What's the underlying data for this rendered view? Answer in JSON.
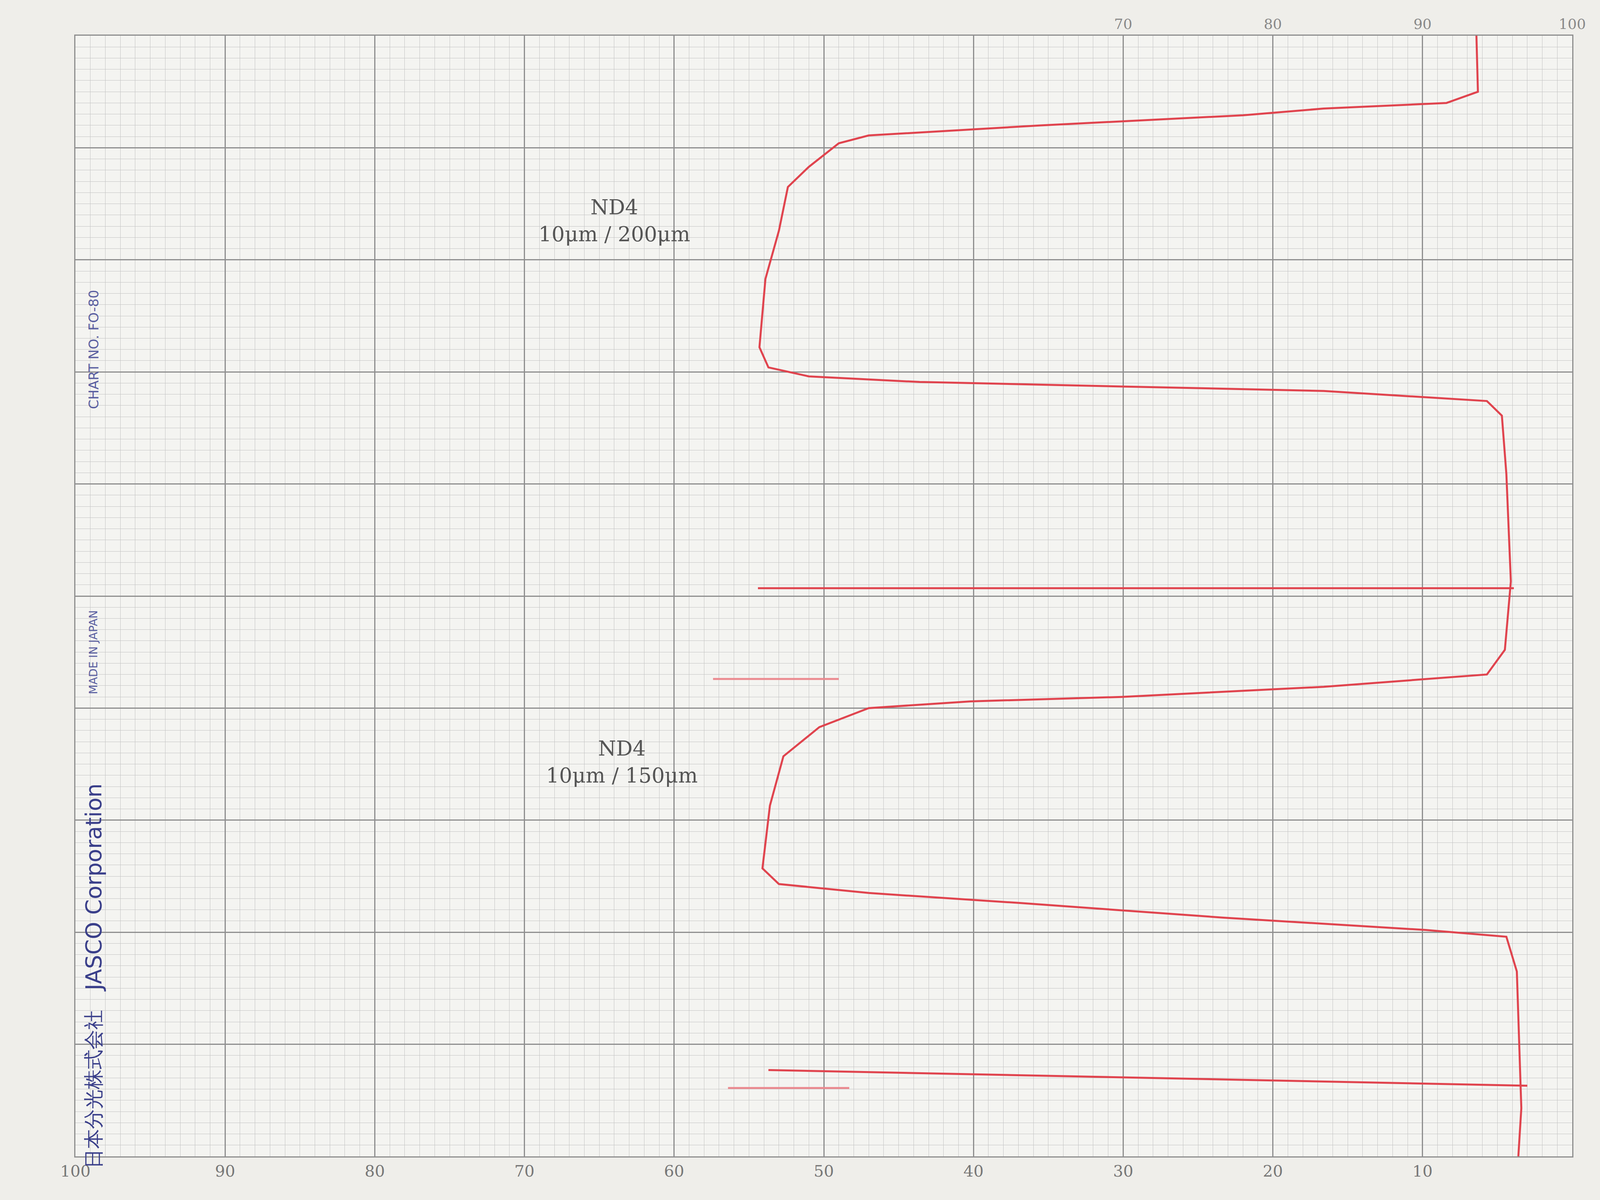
{
  "chart_data": {
    "type": "line",
    "xlim": [
      100,
      0
    ],
    "xticks": [
      100,
      90,
      80,
      70,
      60,
      50,
      40,
      30,
      20,
      10
    ],
    "x2lim": [
      0,
      100
    ],
    "x2ticks": [
      70,
      80,
      90,
      100
    ],
    "ylim": [
      0,
      100
    ],
    "yticks": [
      0,
      10,
      20,
      30,
      40,
      50,
      60,
      70,
      80,
      90,
      100
    ],
    "tick_labels": "x",
    "grid": true,
    "series": [
      {
        "color": "#e0444e",
        "line_style": "solid",
        "x": [
          6.4,
          6.3,
          8.4,
          16.6,
          22.0,
          35.5,
          47.0,
          49.0,
          51.0,
          52.4,
          53.0,
          53.9,
          54.3,
          53.7,
          51.0,
          43.6,
          30.1,
          16.6,
          5.7,
          4.7,
          4.4,
          4.1,
          4.5,
          5.7,
          16.6,
          30.1,
          40.2,
          47.0,
          50.3,
          52.7,
          53.6,
          54.1,
          53.0,
          47.0,
          36.8,
          23.3,
          9.8,
          4.4,
          3.7,
          3.4,
          3.6
        ],
        "y": [
          100,
          95.0,
          94.0,
          93.5,
          92.9,
          92.0,
          91.1,
          90.4,
          88.3,
          86.5,
          82.6,
          78.3,
          72.2,
          70.4,
          69.6,
          69.1,
          68.7,
          68.3,
          67.4,
          66.1,
          60.9,
          51.3,
          45.2,
          43.0,
          41.9,
          41.0,
          40.6,
          40.0,
          38.3,
          35.7,
          31.3,
          25.7,
          24.3,
          23.5,
          22.6,
          21.3,
          20.2,
          19.6,
          16.5,
          4.3,
          0
        ]
      },
      {
        "color": "#e0444e",
        "line_style": "solid",
        "x": [
          54.4,
          3.9
        ],
        "y": [
          50.7,
          50.7
        ]
      },
      {
        "color": "#e0444e",
        "line_style": "solid",
        "x": [
          53.7,
          3.0
        ],
        "y": [
          7.7,
          6.3
        ]
      },
      {
        "color": "#eb8a90",
        "line_style": "solid",
        "x": [
          57.4,
          49.0
        ],
        "y": [
          42.6,
          42.6
        ]
      },
      {
        "color": "#eb8a90",
        "line_style": "solid",
        "x": [
          56.4,
          48.3
        ],
        "y": [
          6.1,
          6.1
        ]
      }
    ],
    "annotations": [
      {
        "text": [
          "ND4",
          "10μm / 200μm"
        ],
        "x": 64,
        "y": 83.5
      },
      {
        "text": [
          "ND4",
          "10μm / 150μm"
        ],
        "x": 63.5,
        "y": 35.2
      }
    ],
    "margin_texts": [
      "日本分光株式会社",
      "JASCO Corporation",
      "MADE IN JAPAN",
      "CHART NO. FO-80"
    ]
  }
}
